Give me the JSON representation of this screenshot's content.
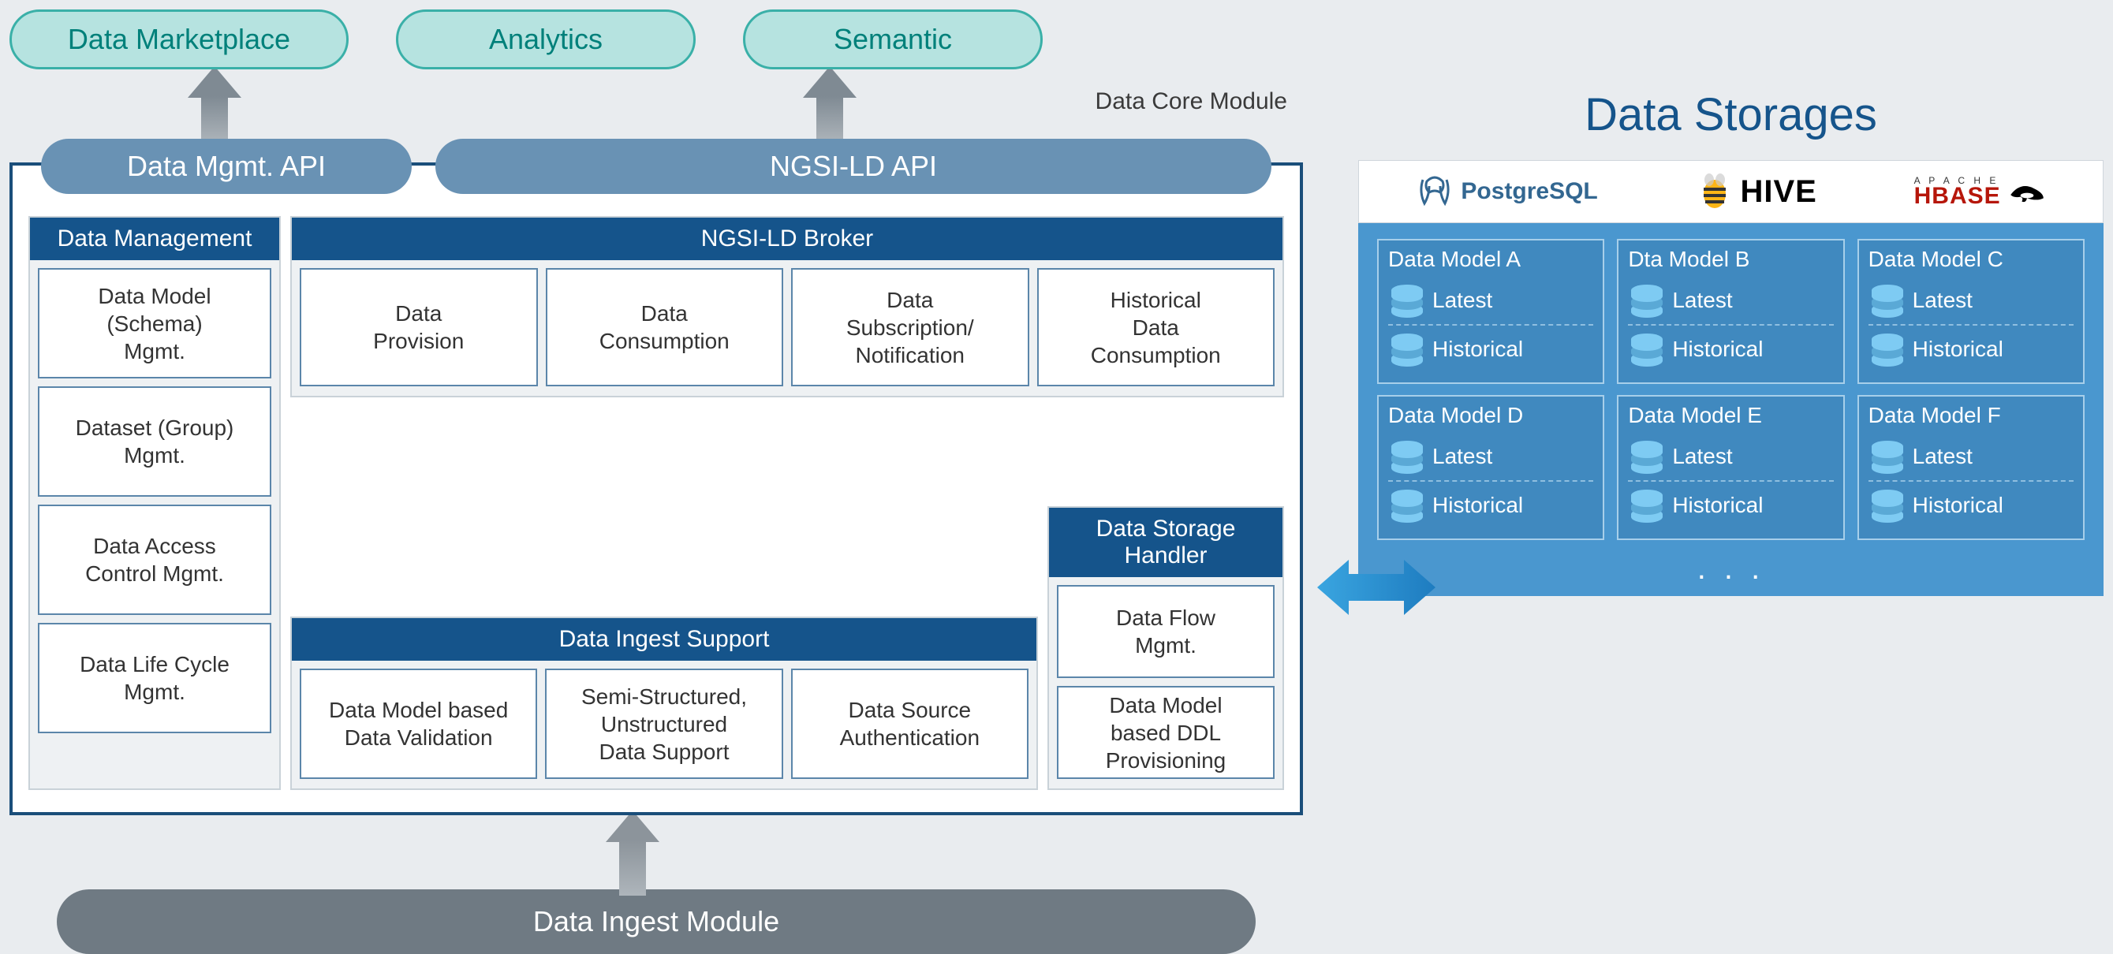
{
  "type": "architecture-diagram",
  "colors": {
    "bg": "#e9ecef",
    "teal_fill": "#b6e3e0",
    "teal_border": "#3ab0a8",
    "teal_text": "#00807a",
    "api_fill": "#6992b4",
    "core_border": "#1a4e7a",
    "section_bg": "#eef1f3",
    "section_border": "#c9d2d8",
    "header_fill": "#15548b",
    "cell_border": "#5b86aa",
    "grey_arrow": "#8c949b",
    "ingest_fill": "#6f7a83",
    "ds_title": "#15548b",
    "ds_body": "#4a97cf",
    "ds_card": "#4089bf",
    "ds_card_border": "#a7cfea",
    "blue_arrow_a": "#3aa5e0",
    "blue_arrow_b": "#1e7cc0",
    "pg": "#336791",
    "hbase": "#b6160a"
  },
  "fonts": {
    "base": "Segoe UI, Arial, sans-serif",
    "pill": 36,
    "header": 30,
    "cell": 28,
    "ds_title": 58,
    "ds_item": 28
  },
  "top": {
    "pills": [
      "Data Marketplace",
      "Analytics",
      "Semantic"
    ],
    "core_label": "Data Core Module"
  },
  "api": {
    "a": "Data Mgmt. API",
    "b": "NGSI-LD API"
  },
  "data_mgmt": {
    "title": "Data Management",
    "cells": [
      "Data Model\n(Schema)\nMgmt.",
      "Dataset (Group)\nMgmt.",
      "Data Access\nControl Mgmt.",
      "Data Life Cycle\nMgmt."
    ]
  },
  "broker": {
    "title": "NGSI-LD Broker",
    "cells": [
      "Data\nProvision",
      "Data\nConsumption",
      "Data\nSubscription/\nNotification",
      "Historical\nData\nConsumption"
    ]
  },
  "ingest_support": {
    "title": "Data Ingest Support",
    "cells": [
      "Data Model based\nData Validation",
      "Semi-Structured,\nUnstructured\nData Support",
      "Data Source\nAuthentication"
    ]
  },
  "handler": {
    "title": "Data Storage\nHandler",
    "cells": [
      "Data Flow\nMgmt.",
      "Data Model\nbased DDL\nProvisioning"
    ]
  },
  "ingest_module": "Data Ingest Module",
  "storages": {
    "title": "Data Storages",
    "logos": {
      "pg": "PostgreSQL",
      "hive": "HIVE",
      "hbase_top": "A P A C H E",
      "hbase": "HBASE"
    },
    "models": [
      {
        "title": "Data Model A",
        "items": [
          "Latest",
          "Historical"
        ]
      },
      {
        "title": "Dta Model B",
        "items": [
          "Latest",
          "Historical"
        ]
      },
      {
        "title": "Data Model C",
        "items": [
          "Latest",
          "Historical"
        ]
      },
      {
        "title": "Data Model D",
        "items": [
          "Latest",
          "Historical"
        ]
      },
      {
        "title": "Data Model E",
        "items": [
          "Latest",
          "Historical"
        ]
      },
      {
        "title": "Data Model F",
        "items": [
          "Latest",
          "Historical"
        ]
      }
    ],
    "more": ". . ."
  }
}
